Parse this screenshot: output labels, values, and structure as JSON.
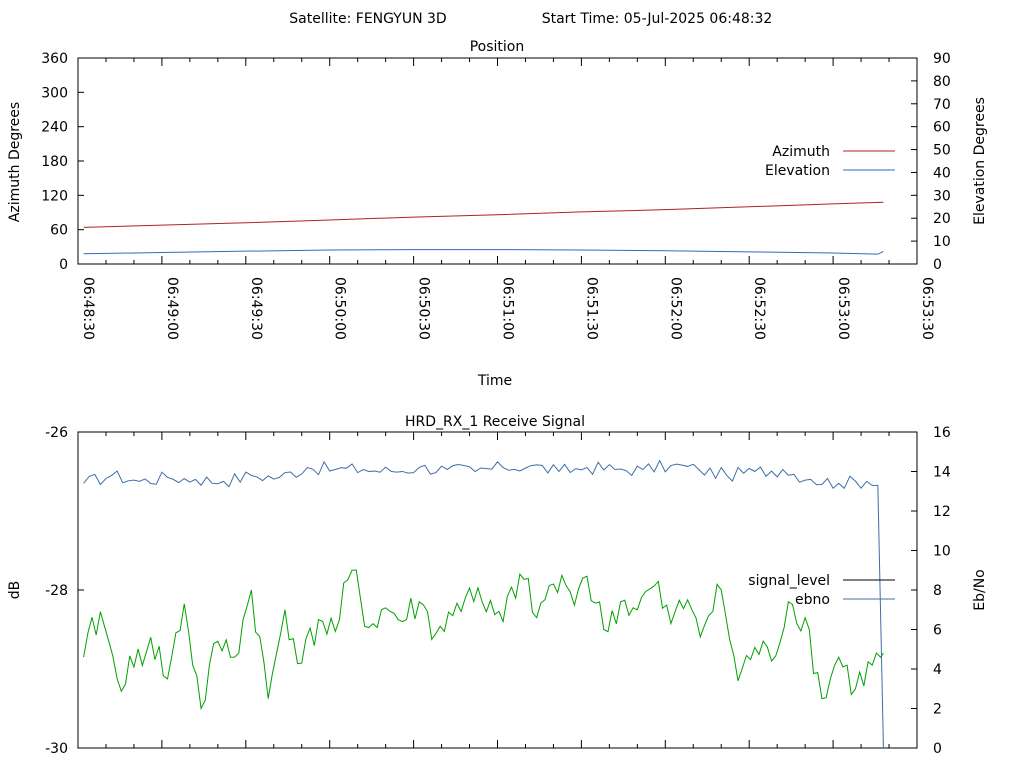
{
  "header": {
    "satellite_label": "Satellite: FENGYUN 3D",
    "start_time_label": "Start Time: 05-Jul-2025 06:48:32"
  },
  "colors": {
    "azimuth": "#b22222",
    "elevation": "#2a6ebb",
    "signal_level": "#000000",
    "ebno_blue": "#3d6fa8",
    "ebno_green": "#00a000"
  },
  "chart_data": [
    {
      "type": "line",
      "title": "Position",
      "xlabel": "Time",
      "ylabel": "Azimuth Degrees",
      "y2label": "Elevation Degrees",
      "legend_position": "right",
      "grid": false,
      "ylim": [
        0,
        360
      ],
      "y2lim": [
        0,
        90
      ],
      "x_ticks": [
        "06:48:30",
        "06:49:00",
        "06:49:30",
        "06:50:00",
        "06:50:30",
        "06:51:00",
        "06:51:30",
        "06:52:00",
        "06:52:30",
        "06:53:00",
        "06:53:30"
      ],
      "y_ticks": [
        "0",
        "60",
        "120",
        "180",
        "240",
        "300",
        "360"
      ],
      "y2_ticks": [
        "0",
        "10",
        "20",
        "30",
        "40",
        "50",
        "60",
        "70",
        "80",
        "90"
      ],
      "series": [
        {
          "name": "Azimuth",
          "axis": "left",
          "x_seconds": [
            2,
            30,
            60,
            90,
            120,
            150,
            180,
            210,
            240,
            270,
            288
          ],
          "values": [
            64,
            68,
            72,
            77,
            82,
            86,
            91,
            95,
            100,
            105,
            108
          ]
        },
        {
          "name": "Elevation",
          "axis": "right",
          "x_seconds": [
            2,
            30,
            60,
            90,
            120,
            150,
            180,
            210,
            240,
            270,
            286,
            288
          ],
          "values": [
            4.5,
            5.0,
            5.6,
            6.1,
            6.3,
            6.3,
            6.1,
            5.8,
            5.3,
            4.8,
            4.3,
            5.5
          ]
        }
      ]
    },
    {
      "type": "line",
      "title": "HRD_RX_1 Receive Signal",
      "xlabel": "",
      "ylabel": "dB",
      "y2label": "Eb/No",
      "legend_position": "right",
      "grid": false,
      "ylim": [
        -30,
        -26
      ],
      "y2lim": [
        0,
        16
      ],
      "y_ticks": [
        "-26",
        "-28",
        "-30"
      ],
      "y2_ticks": [
        "0",
        "2",
        "4",
        "6",
        "8",
        "10",
        "12",
        "14",
        "16"
      ],
      "series": [
        {
          "name": "signal_level",
          "axis": "left",
          "x_seconds": [],
          "values": []
        },
        {
          "name": "ebno",
          "axis": "right",
          "x_seconds": [
            2,
            12,
            22,
            32,
            42,
            52,
            62,
            72,
            82,
            92,
            102,
            112,
            122,
            132,
            142,
            152,
            162,
            172,
            182,
            192,
            202,
            212,
            222,
            232,
            242,
            252,
            262,
            272,
            282,
            286,
            288
          ],
          "values": [
            13.4,
            13.8,
            13.5,
            13.7,
            13.6,
            13.5,
            13.8,
            13.7,
            14.2,
            14.1,
            14.1,
            14.0,
            14.2,
            14.1,
            14.0,
            14.2,
            14.3,
            14.0,
            14.2,
            14.1,
            14.1,
            14.3,
            14.1,
            13.8,
            14.0,
            14.1,
            13.6,
            13.4,
            13.5,
            13.3,
            0.0
          ]
        },
        {
          "name": "",
          "axis": "right",
          "x_seconds": [
            2,
            8,
            14,
            20,
            26,
            32,
            38,
            44,
            50,
            56,
            62,
            68,
            74,
            80,
            86,
            92,
            98,
            104,
            110,
            116,
            122,
            128,
            134,
            140,
            146,
            152,
            158,
            164,
            170,
            176,
            182,
            188,
            194,
            200,
            206,
            212,
            218,
            224,
            230,
            236,
            242,
            248,
            254,
            260,
            266,
            272,
            278,
            284,
            288
          ],
          "values": [
            4.6,
            6.9,
            3.5,
            4.1,
            5.6,
            3.5,
            7.3,
            2.0,
            5.4,
            4.6,
            8.0,
            2.5,
            7.0,
            4.3,
            6.5,
            5.9,
            9.0,
            6.1,
            7.1,
            6.4,
            7.4,
            5.8,
            6.7,
            8.1,
            6.9,
            6.4,
            8.8,
            6.6,
            8.3,
            7.9,
            8.7,
            6.0,
            7.4,
            7.0,
            8.2,
            6.3,
            7.5,
            6.2,
            8.0,
            3.4,
            5.1,
            4.4,
            7.4,
            6.6,
            2.5,
            4.6,
            3.0,
            4.2,
            4.8
          ]
        }
      ]
    }
  ]
}
